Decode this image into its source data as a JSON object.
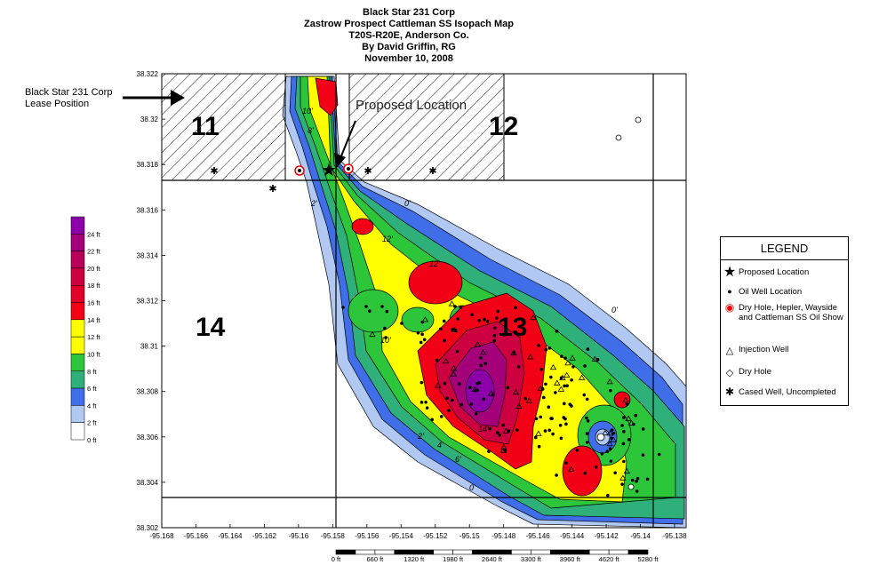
{
  "title_lines": [
    "Black Star 231 Corp",
    "Zastrow Prospect Cattleman SS Isopach Map",
    "T20S-R20E, Anderson Co.",
    "By David Griffin, RG",
    "November 10, 2008"
  ],
  "lease_label": [
    "Black Star 231 Corp",
    "Lease Position"
  ],
  "proposed_label": "Proposed Location",
  "sections": {
    "s11": "11",
    "s12": "12",
    "s13": "13",
    "s14": "14"
  },
  "y_ticks": [
    "38.322",
    "38.32",
    "38.318",
    "38.316",
    "38.314",
    "38.312",
    "38.31",
    "38.308",
    "38.306",
    "38.304",
    "38.302"
  ],
  "x_ticks": [
    "-95.168",
    "-95.166",
    "-95.164",
    "-95.162",
    "-95.16",
    "-95.158",
    "-95.156",
    "-95.154",
    "-95.152",
    "-95.15",
    "-95.148",
    "-95.146",
    "-95.144",
    "-95.142",
    "-95.14",
    "-95.138"
  ],
  "scale_labels": [
    "0 ft",
    "660 ft",
    "1320 ft",
    "1980 ft",
    "2640 ft",
    "3300 ft",
    "3960 ft",
    "4620 ft",
    "5280 ft"
  ],
  "color_scale": [
    {
      "label": "24 ft",
      "color": "#8b00a8"
    },
    {
      "label": "22 ft",
      "color": "#a3007a"
    },
    {
      "label": "20 ft",
      "color": "#b8005a"
    },
    {
      "label": "18 ft",
      "color": "#cc0040"
    },
    {
      "label": "16 ft",
      "color": "#e0002a"
    },
    {
      "label": "14 ft",
      "color": "#f20015"
    },
    {
      "label": "12 ft",
      "color": "#ffff00"
    },
    {
      "label": "10 ft",
      "color": "#ffff00"
    },
    {
      "label": "8 ft",
      "color": "#2dc63a"
    },
    {
      "label": "6 ft",
      "color": "#2fb07a"
    },
    {
      "label": "4 ft",
      "color": "#3f6ee8"
    },
    {
      "label": "2 ft",
      "color": "#b0c8f2"
    },
    {
      "label": "0 ft",
      "color": "#ffffff"
    }
  ],
  "legend": {
    "title": "LEGEND",
    "items": [
      {
        "symbol": "star-icon",
        "text": "Proposed Location"
      },
      {
        "symbol": "dot-icon",
        "text": "Oil Well Location"
      },
      {
        "symbol": "dry-show-icon",
        "text": "Dry Hole, Hepler, Wayside and Cattleman SS Oil Show"
      },
      {
        "symbol": "triangle-icon",
        "text": "Injection Well"
      },
      {
        "symbol": "dry-hole-icon",
        "text": "Dry Hole"
      },
      {
        "symbol": "asterisk-icon",
        "text": "Cased Well, Uncompleted"
      }
    ]
  },
  "contour_labels": [
    "10'",
    "8'",
    "6'",
    "4'",
    "2'",
    "0'",
    "12'",
    "14'"
  ]
}
